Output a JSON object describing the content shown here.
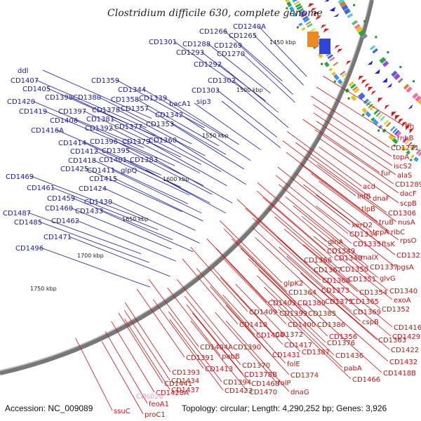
{
  "title": "Clostridium difficile 630, complete genome",
  "footer": {
    "accession": "Accession: NC_009089",
    "stats": "Topology: circular; Length: 4,290,252 bp; Genes: 3,926"
  },
  "colors": {
    "plus_strand": "#1a1aa8",
    "minus_strand": "#dd1111",
    "rna": "#ee99cc",
    "backbone": "#777777"
  },
  "scale_ticks": [
    "1450 kbp",
    "1500 kbp",
    "1550 kbp",
    "1600 kbp",
    "1650 kbp",
    "1700 kbp",
    "1750 kbp"
  ],
  "blue_genes": [
    "CD1266",
    "CD1240A",
    "CD1265",
    "CD1301",
    "CD1288",
    "CD1269",
    "CD1293",
    "CD1270",
    "CD1292",
    "ddl",
    "CD1407",
    "CD1405",
    "CD1359",
    "CD1302",
    "CD1344",
    "CD1303",
    "CD1398",
    "CD1380",
    "CD1358",
    "CD1339",
    "sip3",
    "CD1420",
    "bacA1",
    "CD1397",
    "CD1378",
    "CD1357",
    "CD1419",
    "CD1406",
    "CD1381",
    "CD1342",
    "CD1392",
    "CD1377",
    "CD1353",
    "CD1416A",
    "CD1414",
    "CD1396",
    "CD1379",
    "CD1360",
    "CD1412",
    "CD1395",
    "CD1418",
    "CD1401",
    "CD1383",
    "CD1425",
    "CD1411",
    "glpQ",
    "CD1415",
    "CD1469",
    "CD1424",
    "CD1461",
    "CD1459",
    "CD1430",
    "CD1460",
    "CD1433",
    "CD1487",
    "CD1462",
    "CD1485",
    "CD1471",
    "CD1496"
  ],
  "red_genes": [
    "ffh",
    "rnhB",
    "CD1271",
    "topA",
    "iscS2",
    "fur",
    "alaS",
    "CD1289",
    "acd",
    "dacF",
    "infB",
    "dnaF",
    "scpB",
    "tlpB",
    "CD1306",
    "truB",
    "nusA",
    "xerD2",
    "tepA",
    "ribC",
    "CD1334",
    "glnA",
    "CD1335",
    "ftsK",
    "rpsO",
    "CD1349",
    "CD1325",
    "CD1366",
    "CD1348",
    "malX",
    "CD1367",
    "CD1350",
    "CD1337",
    "pgsA",
    "CD1368",
    "CD1351",
    "glvG",
    "glpK2",
    "CD1373",
    "CD1354",
    "CD1340",
    "CD1364",
    "CD1403",
    "CD1389",
    "CD1375",
    "CD1365",
    "exoA",
    "CD1409",
    "CD1399",
    "CD1385",
    "CD1369",
    "CD1352",
    "CD1410",
    "CD1400",
    "CD1386",
    "cspB",
    "CD1416",
    "CD1404",
    "CD1372",
    "CD1356",
    "CD1429",
    "CD1417",
    "CD1387",
    "CD1376",
    "CD1363",
    "CD1404A",
    "CD1390",
    "pabB",
    "CD1431",
    "CD1436",
    "CD1422",
    "CD1391",
    "CD1370",
    "folE",
    "CD1432",
    "CD1413",
    "CD1374",
    "pabA",
    "CD1418B",
    "CD1393",
    "CD1378B",
    "CD1466",
    "CD1434",
    "CD1394",
    "CD1468",
    "folP",
    "CD1437",
    "CD1423",
    "CD1470",
    "dnaG",
    "CD1441",
    "CD1428A",
    "feoA1",
    "ssuC",
    "proC1",
    "CD1516",
    "tlpB"
  ],
  "rna_genes": [
    "CDs026"
  ]
}
